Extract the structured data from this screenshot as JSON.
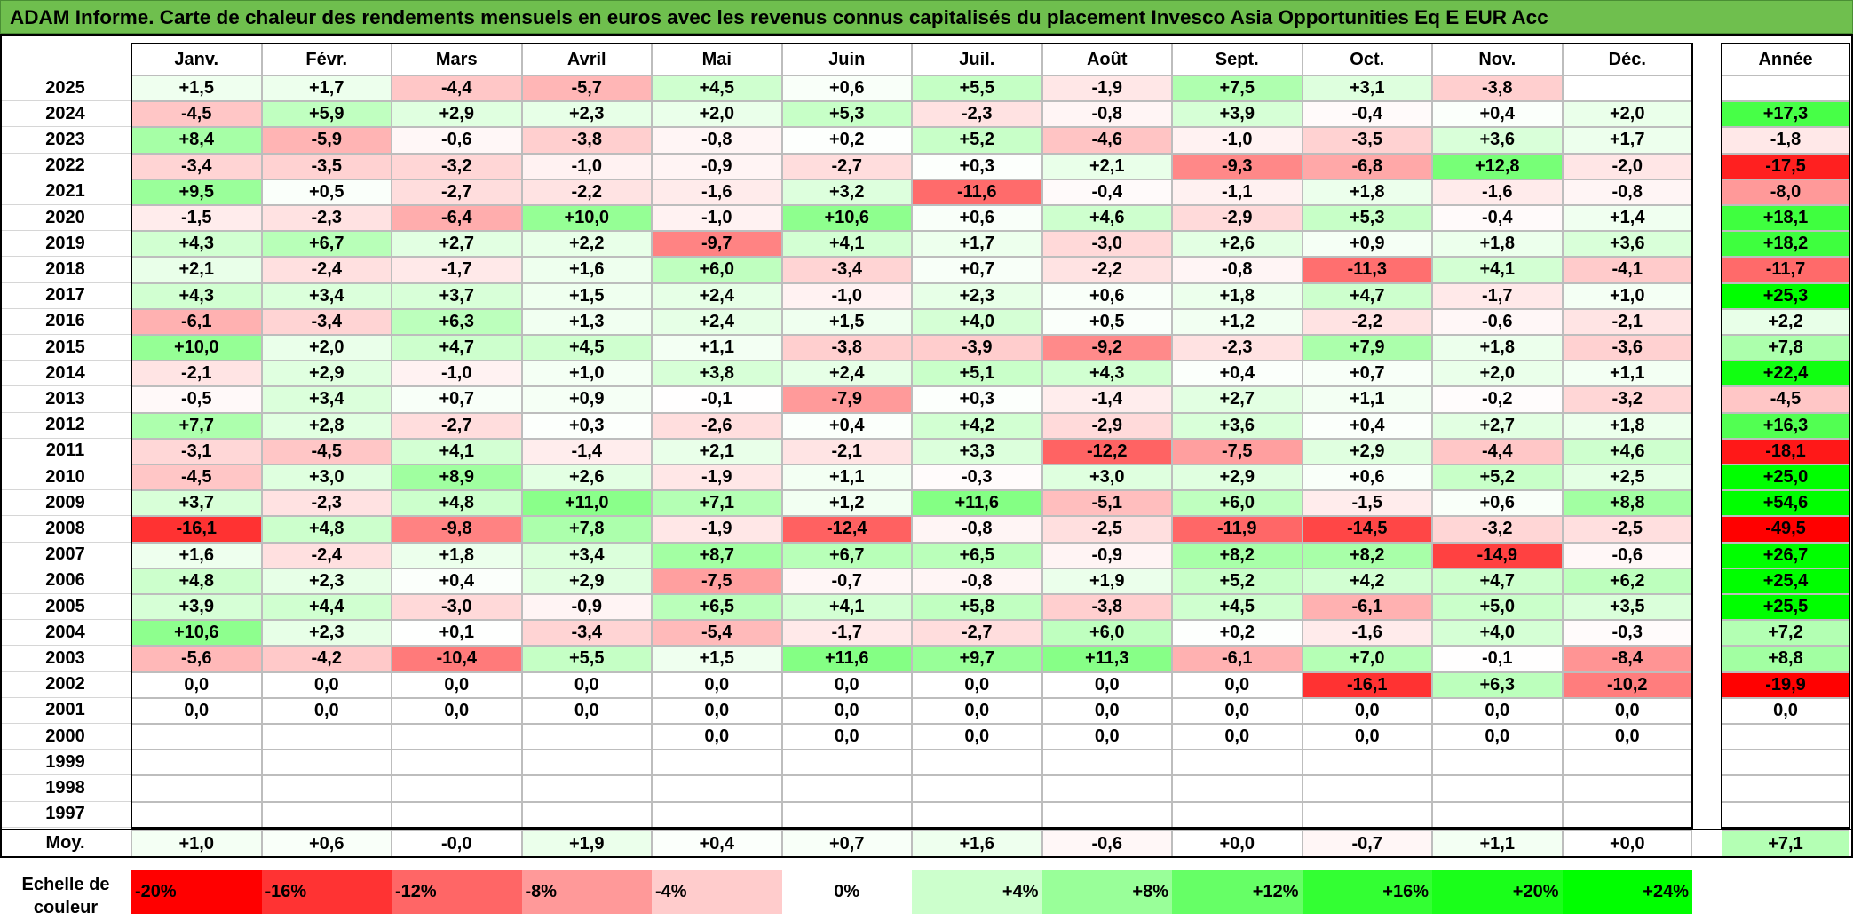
{
  "title": "ADAM Informe. Carte de chaleur des rendements mensuels en euros avec les revenus connus capitalisés du placement Invesco Asia Opportunities Eq E EUR Acc",
  "colors": {
    "title_bg": "#6fbf4e",
    "negative": "#ff0000",
    "positive": "#00ff00",
    "neutral": "#ffffff"
  },
  "chart_data": {
    "type": "heatmap",
    "title": "ADAM Informe. Carte de chaleur des rendements mensuels en euros avec les revenus connus capitalisés du placement Invesco Asia Opportunities Eq E EUR Acc",
    "columns": [
      "Janv.",
      "Févr.",
      "Mars",
      "Avril",
      "Mai",
      "Juin",
      "Juil.",
      "Août",
      "Sept.",
      "Oct.",
      "Nov.",
      "Déc."
    ],
    "year_column_label": "Année",
    "average_row_label": "Moy.",
    "rows": [
      {
        "year": "2025",
        "months": [
          "+1,5",
          "+1,7",
          "-4,4",
          "-5,7",
          "+4,5",
          "+0,6",
          "+5,5",
          "-1,9",
          "+7,5",
          "+3,1",
          "-3,8",
          ""
        ],
        "annual": ""
      },
      {
        "year": "2024",
        "months": [
          "-4,5",
          "+5,9",
          "+2,9",
          "+2,3",
          "+2,0",
          "+5,3",
          "-2,3",
          "-0,8",
          "+3,9",
          "-0,4",
          "+0,4",
          "+2,0"
        ],
        "annual": "+17,3"
      },
      {
        "year": "2023",
        "months": [
          "+8,4",
          "-5,9",
          "-0,6",
          "-3,8",
          "-0,8",
          "+0,2",
          "+5,2",
          "-4,6",
          "-1,0",
          "-3,5",
          "+3,6",
          "+1,7"
        ],
        "annual": "-1,8"
      },
      {
        "year": "2022",
        "months": [
          "-3,4",
          "-3,5",
          "-3,2",
          "-1,0",
          "-0,9",
          "-2,7",
          "+0,3",
          "+2,1",
          "-9,3",
          "-6,8",
          "+12,8",
          "-2,0"
        ],
        "annual": "-17,5"
      },
      {
        "year": "2021",
        "months": [
          "+9,5",
          "+0,5",
          "-2,7",
          "-2,2",
          "-1,6",
          "+3,2",
          "-11,6",
          "-0,4",
          "-1,1",
          "+1,8",
          "-1,6",
          "-0,8"
        ],
        "annual": "-8,0"
      },
      {
        "year": "2020",
        "months": [
          "-1,5",
          "-2,3",
          "-6,4",
          "+10,0",
          "-1,0",
          "+10,6",
          "+0,6",
          "+4,6",
          "-2,9",
          "+5,3",
          "-0,4",
          "+1,4"
        ],
        "annual": "+18,1"
      },
      {
        "year": "2019",
        "months": [
          "+4,3",
          "+6,7",
          "+2,7",
          "+2,2",
          "-9,7",
          "+4,1",
          "+1,7",
          "-3,0",
          "+2,6",
          "+0,9",
          "+1,8",
          "+3,6"
        ],
        "annual": "+18,2"
      },
      {
        "year": "2018",
        "months": [
          "+2,1",
          "-2,4",
          "-1,7",
          "+1,6",
          "+6,0",
          "-3,4",
          "+0,7",
          "-2,2",
          "-0,8",
          "-11,3",
          "+4,1",
          "-4,1"
        ],
        "annual": "-11,7"
      },
      {
        "year": "2017",
        "months": [
          "+4,3",
          "+3,4",
          "+3,7",
          "+1,5",
          "+2,4",
          "-1,0",
          "+2,3",
          "+0,6",
          "+1,8",
          "+4,7",
          "-1,7",
          "+1,0"
        ],
        "annual": "+25,3"
      },
      {
        "year": "2016",
        "months": [
          "-6,1",
          "-3,4",
          "+6,3",
          "+1,3",
          "+2,4",
          "+1,5",
          "+4,0",
          "+0,5",
          "+1,2",
          "-2,2",
          "-0,6",
          "-2,1"
        ],
        "annual": "+2,2"
      },
      {
        "year": "2015",
        "months": [
          "+10,0",
          "+2,0",
          "+4,7",
          "+4,5",
          "+1,1",
          "-3,8",
          "-3,9",
          "-9,2",
          "-2,3",
          "+7,9",
          "+1,8",
          "-3,6"
        ],
        "annual": "+7,8"
      },
      {
        "year": "2014",
        "months": [
          "-2,1",
          "+2,9",
          "-1,0",
          "+1,0",
          "+3,8",
          "+2,4",
          "+5,1",
          "+4,3",
          "+0,4",
          "+0,7",
          "+2,0",
          "+1,1"
        ],
        "annual": "+22,4"
      },
      {
        "year": "2013",
        "months": [
          "-0,5",
          "+3,4",
          "+0,7",
          "+0,9",
          "-0,1",
          "-7,9",
          "+0,3",
          "-1,4",
          "+2,7",
          "+1,1",
          "-0,2",
          "-3,2"
        ],
        "annual": "-4,5"
      },
      {
        "year": "2012",
        "months": [
          "+7,7",
          "+2,8",
          "-2,7",
          "+0,3",
          "-2,6",
          "+0,4",
          "+4,2",
          "-2,9",
          "+3,6",
          "+0,4",
          "+2,7",
          "+1,8"
        ],
        "annual": "+16,3"
      },
      {
        "year": "2011",
        "months": [
          "-3,1",
          "-4,5",
          "+4,1",
          "-1,4",
          "+2,1",
          "-2,1",
          "+3,3",
          "-12,2",
          "-7,5",
          "+2,9",
          "-4,4",
          "+4,6"
        ],
        "annual": "-18,1"
      },
      {
        "year": "2010",
        "months": [
          "-4,5",
          "+3,0",
          "+8,9",
          "+2,6",
          "-1,9",
          "+1,1",
          "-0,3",
          "+3,0",
          "+2,9",
          "+0,6",
          "+5,2",
          "+2,5"
        ],
        "annual": "+25,0"
      },
      {
        "year": "2009",
        "months": [
          "+3,7",
          "-2,3",
          "+4,8",
          "+11,0",
          "+7,1",
          "+1,2",
          "+11,6",
          "-5,1",
          "+6,0",
          "-1,5",
          "+0,6",
          "+8,8"
        ],
        "annual": "+54,6"
      },
      {
        "year": "2008",
        "months": [
          "-16,1",
          "+4,8",
          "-9,8",
          "+7,8",
          "-1,9",
          "-12,4",
          "-0,8",
          "-2,5",
          "-11,9",
          "-14,5",
          "-3,2",
          "-2,5"
        ],
        "annual": "-49,5"
      },
      {
        "year": "2007",
        "months": [
          "+1,6",
          "-2,4",
          "+1,8",
          "+3,4",
          "+8,7",
          "+6,7",
          "+6,5",
          "-0,9",
          "+8,2",
          "+8,2",
          "-14,9",
          "-0,6"
        ],
        "annual": "+26,7"
      },
      {
        "year": "2006",
        "months": [
          "+4,8",
          "+2,3",
          "+0,4",
          "+2,9",
          "-7,5",
          "-0,7",
          "-0,8",
          "+1,9",
          "+5,2",
          "+4,2",
          "+4,7",
          "+6,2"
        ],
        "annual": "+25,4"
      },
      {
        "year": "2005",
        "months": [
          "+3,9",
          "+4,4",
          "-3,0",
          "-0,9",
          "+6,5",
          "+4,1",
          "+5,8",
          "-3,8",
          "+4,5",
          "-6,1",
          "+5,0",
          "+3,5"
        ],
        "annual": "+25,5"
      },
      {
        "year": "2004",
        "months": [
          "+10,6",
          "+2,3",
          "+0,1",
          "-3,4",
          "-5,4",
          "-1,7",
          "-2,7",
          "+6,0",
          "+0,2",
          "-1,6",
          "+4,0",
          "-0,3"
        ],
        "annual": "+7,2"
      },
      {
        "year": "2003",
        "months": [
          "-5,6",
          "-4,2",
          "-10,4",
          "+5,5",
          "+1,5",
          "+11,6",
          "+9,7",
          "+11,3",
          "-6,1",
          "+7,0",
          "-0,1",
          "-8,4"
        ],
        "annual": "+8,8"
      },
      {
        "year": "2002",
        "months": [
          "0,0",
          "0,0",
          "0,0",
          "0,0",
          "0,0",
          "0,0",
          "0,0",
          "0,0",
          "0,0",
          "-16,1",
          "+6,3",
          "-10,2"
        ],
        "annual": "-19,9"
      },
      {
        "year": "2001",
        "months": [
          "0,0",
          "0,0",
          "0,0",
          "0,0",
          "0,0",
          "0,0",
          "0,0",
          "0,0",
          "0,0",
          "0,0",
          "0,0",
          "0,0"
        ],
        "annual": "0,0"
      },
      {
        "year": "2000",
        "months": [
          "",
          "",
          "",
          "",
          "0,0",
          "0,0",
          "0,0",
          "0,0",
          "0,0",
          "0,0",
          "0,0",
          "0,0"
        ],
        "annual": ""
      },
      {
        "year": "1999",
        "months": [
          "",
          "",
          "",
          "",
          "",
          "",
          "",
          "",
          "",
          "",
          "",
          ""
        ],
        "annual": ""
      },
      {
        "year": "1998",
        "months": [
          "",
          "",
          "",
          "",
          "",
          "",
          "",
          "",
          "",
          "",
          "",
          ""
        ],
        "annual": ""
      },
      {
        "year": "1997",
        "months": [
          "",
          "",
          "",
          "",
          "",
          "",
          "",
          "",
          "",
          "",
          "",
          ""
        ],
        "annual": ""
      }
    ],
    "average": {
      "months": [
        "+1,0",
        "+0,6",
        "-0,0",
        "+1,9",
        "+0,4",
        "+0,7",
        "+1,6",
        "-0,6",
        "+0,0",
        "-0,7",
        "+1,1",
        "+0,0"
      ],
      "annual": "+7,1"
    },
    "color_scale": {
      "label": "Echelle de couleur",
      "stops": [
        {
          "label": "-20%",
          "value": -20,
          "color": "#ff0000"
        },
        {
          "label": "-16%",
          "value": -16,
          "color": "#ff3333"
        },
        {
          "label": "-12%",
          "value": -12,
          "color": "#ff6666"
        },
        {
          "label": "-8%",
          "value": -8,
          "color": "#ff9999"
        },
        {
          "label": "-4%",
          "value": -4,
          "color": "#ffcccc"
        },
        {
          "label": "0%",
          "value": 0,
          "color": "#ffffff"
        },
        {
          "label": "+4%",
          "value": 4,
          "color": "#ccffcc"
        },
        {
          "label": "+8%",
          "value": 8,
          "color": "#99ff99"
        },
        {
          "label": "+12%",
          "value": 12,
          "color": "#66ff66"
        },
        {
          "label": "+16%",
          "value": 16,
          "color": "#33ff33"
        },
        {
          "label": "+20%",
          "value": 20,
          "color": "#1aff1a"
        },
        {
          "label": "+24%",
          "value": 24,
          "color": "#00ff00"
        }
      ]
    }
  }
}
